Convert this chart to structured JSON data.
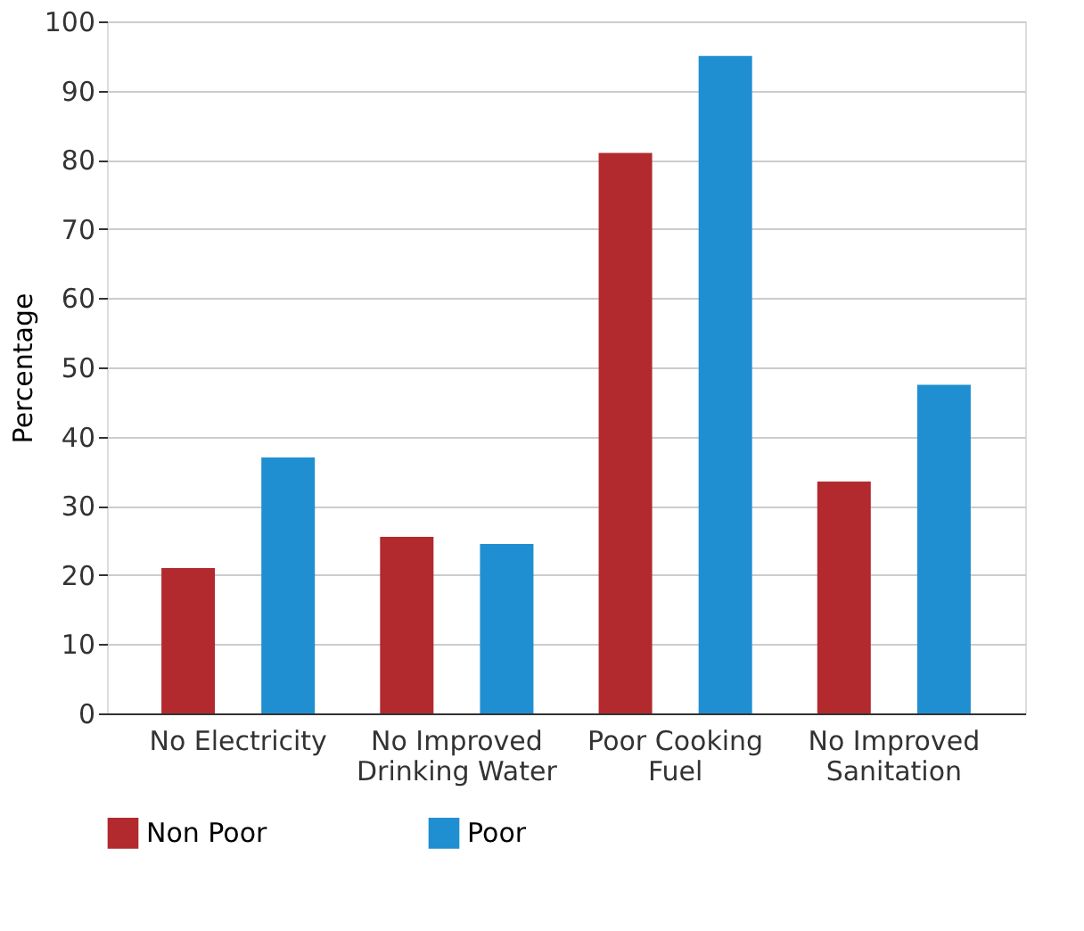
{
  "chart_data": {
    "type": "bar",
    "ylabel": "Percentage",
    "categories": [
      "No Electricity",
      "No Improved Drinking Water",
      "Poor Cooking Fuel",
      "No Improved Sanitation"
    ],
    "series": [
      {
        "name": "Non Poor",
        "color": "#b22a2e",
        "values": [
          21,
          25.5,
          81,
          33.5
        ]
      },
      {
        "name": "Poor",
        "color": "#1f8fd1",
        "values": [
          37,
          24.5,
          95,
          47.5
        ]
      }
    ],
    "ylim": [
      0,
      100
    ],
    "yticks": [
      0,
      10,
      20,
      30,
      40,
      50,
      60,
      70,
      80,
      90,
      100
    ],
    "grid": "y",
    "legend": "bottom"
  }
}
